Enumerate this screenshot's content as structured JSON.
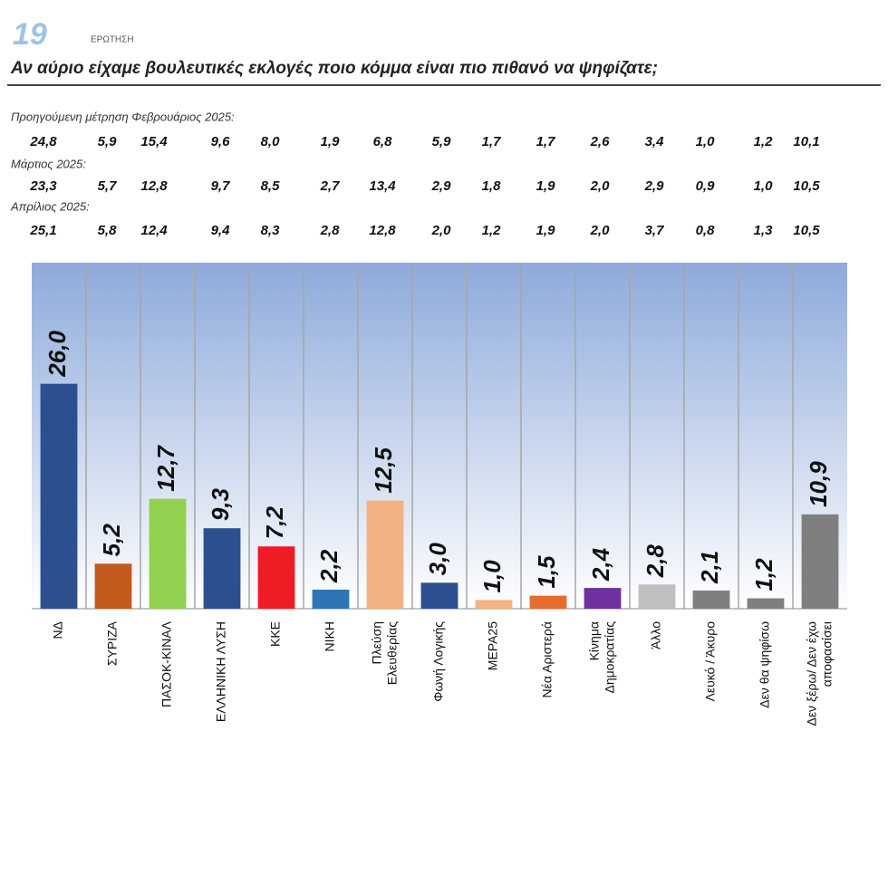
{
  "header": {
    "number": "19",
    "label": "ΕΡΩΤΗΣΗ",
    "question": "Αν αύριο είχαμε βουλευτικές εκλογές ποιο κόμμα είναι πιο πιθανό να ψηφίζατε;"
  },
  "previous_measurements": [
    {
      "label": "Προηγούμενη μέτρηση Φεβρουάριος 2025:",
      "values": [
        "24,8",
        "5,9",
        "15,4",
        "9,6",
        "8,0",
        "1,9",
        "6,8",
        "5,9",
        "1,7",
        "1,7",
        "2,6",
        "3,4",
        "1,0",
        "1,2",
        "10,1"
      ]
    },
    {
      "label": "Μάρτιος 2025:",
      "values": [
        "23,3",
        "5,7",
        "12,8",
        "9,7",
        "8,5",
        "2,7",
        "13,4",
        "2,9",
        "1,8",
        "1,9",
        "2,0",
        "2,9",
        "0,9",
        "1,0",
        "10,5"
      ]
    },
    {
      "label": "Απρίλιος 2025:",
      "values": [
        "25,1",
        "5,8",
        "12,4",
        "9,4",
        "8,3",
        "2,8",
        "12,8",
        "2,0",
        "1,2",
        "1,9",
        "2,0",
        "3,7",
        "0,8",
        "1,3",
        "10,5"
      ]
    }
  ],
  "chart_data": {
    "type": "bar",
    "categories": [
      "ΝΔ",
      "ΣΥΡΙΖΑ",
      "ΠΑΣΟΚ-ΚΙΝΑΛ",
      "ΕΛΛΗΝΙΚΗ ΛΥΣΗ",
      "ΚΚΕ",
      "ΝΙΚΗ",
      "Πλεύση\nΕλευθερίας",
      "Φωνή Λογικής",
      "ΜΕΡΑ25",
      "Νέα Αριστερά",
      "Κίνημα\nΔημοκρατίας",
      "Άλλο",
      "Λευκό / Άκυρο",
      "Δεν θα ψηφίσω",
      "Δεν ξέρω/ Δεν έχω\nαποφασίσει"
    ],
    "values": [
      26.0,
      5.2,
      12.7,
      9.3,
      7.2,
      2.2,
      12.5,
      3.0,
      1.0,
      1.5,
      2.4,
      2.8,
      2.1,
      1.2,
      10.9
    ],
    "value_labels": [
      "26,0",
      "5,2",
      "12,7",
      "9,3",
      "7,2",
      "2,2",
      "12,5",
      "3,0",
      "1,0",
      "1,5",
      "2,4",
      "2,8",
      "2,1",
      "1,2",
      "10,9"
    ],
    "colors": [
      "#2c4f8f",
      "#c45a1e",
      "#92d050",
      "#2c4f8f",
      "#ee1c25",
      "#2e75b6",
      "#f4b183",
      "#2c4f8f",
      "#f4b183",
      "#e86a2c",
      "#7030a0",
      "#bfbfbf",
      "#7f7f7f",
      "#7f7f7f",
      "#7f7f7f"
    ],
    "ylim": [
      0,
      40
    ]
  }
}
